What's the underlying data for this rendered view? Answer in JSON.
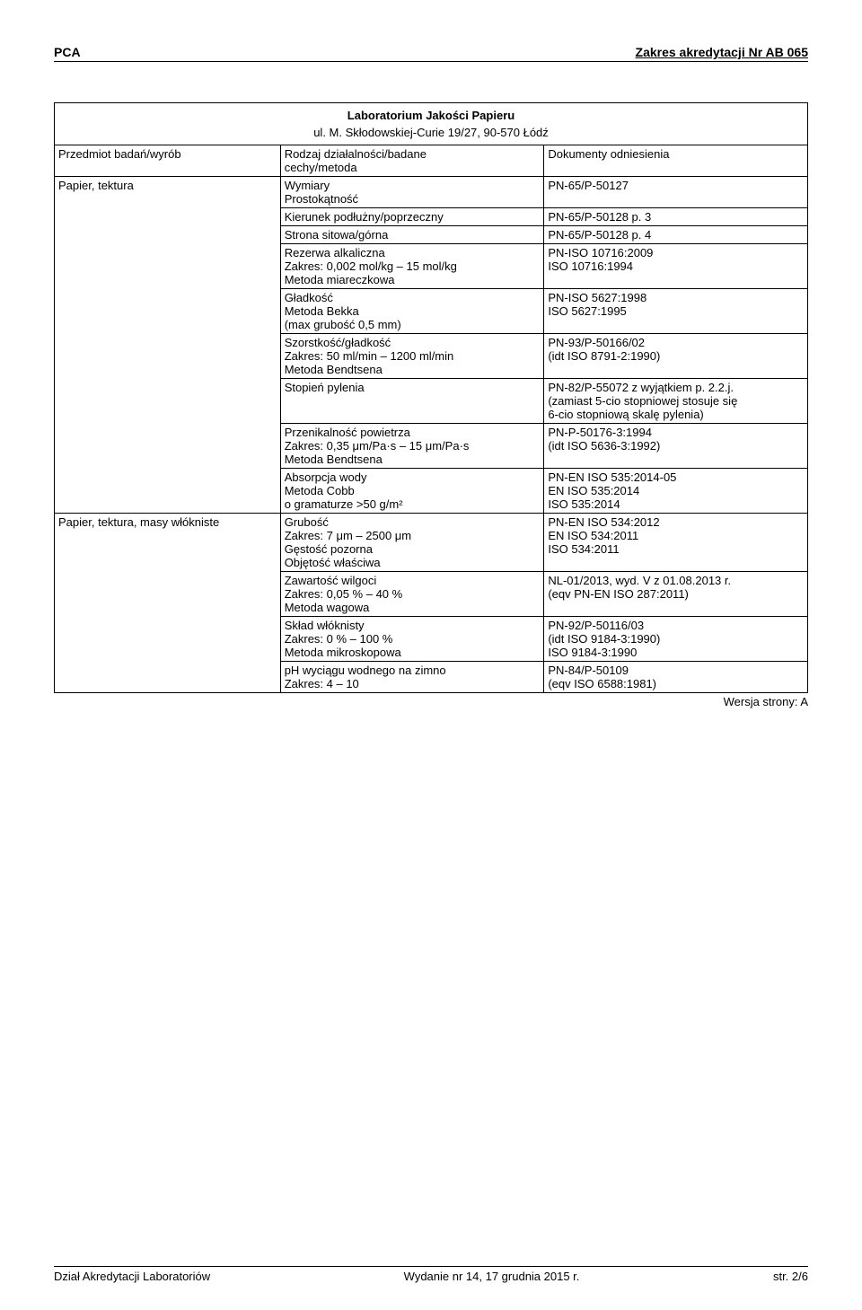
{
  "header": {
    "left": "PCA",
    "right": "Zakres akredytacji Nr AB 065"
  },
  "lab_title": "Laboratorium Jakości Papieru",
  "lab_address": "ul. M. Skłodowskiej-Curie 19/27, 90-570 Łódź",
  "columns": {
    "c1": "Przedmiot badań/wyrób",
    "c2_l1": "Rodzaj działalności/badane",
    "c2_l2": "cechy/metoda",
    "c3": "Dokumenty odniesienia"
  },
  "g1_label": "Papier, tektura",
  "g1": {
    "r1a": "Wymiary",
    "r1b": "Prostokątność",
    "r1d": "PN-65/P-50127",
    "r2a": "Kierunek podłużny/poprzeczny",
    "r2d": "PN-65/P-50128 p. 3",
    "r3a": "Strona sitowa/górna",
    "r3d": "PN-65/P-50128 p. 4",
    "r4a": "Rezerwa alkaliczna",
    "r4b": "Zakres: 0,002 mol/kg – 15 mol/kg",
    "r4c": "Metoda miareczkowa",
    "r4d1": "PN-ISO 10716:2009",
    "r4d2": "ISO 10716:1994",
    "r5a": "Gładkość",
    "r5b": "Metoda Bekka",
    "r5c": "(max grubość 0,5 mm)",
    "r5d1": "PN-ISO 5627:1998",
    "r5d2": "ISO 5627:1995",
    "r6a": "Szorstkość/gładkość",
    "r6b": "Zakres: 50 ml/min – 1200 ml/min",
    "r6c": "Metoda Bendtsena",
    "r6d1": "PN-93/P-50166/02",
    "r6d2": "(idt ISO 8791-2:1990)",
    "r7a": "Stopień pylenia",
    "r7d1": "PN-82/P-55072 z wyjątkiem p. 2.2.j.",
    "r7d2": "(zamiast 5-cio stopniowej stosuje się",
    "r7d3": "6-cio stopniową skalę pylenia)",
    "r8a": "Przenikalność powietrza",
    "r8b": "Zakres: 0,35 μm/Pa·s – 15 μm/Pa·s",
    "r8c": "Metoda Bendtsena",
    "r8d1": "PN-P-50176-3:1994",
    "r8d2": "(idt ISO 5636-3:1992)",
    "r9a": "Absorpcja wody",
    "r9b": "Metoda Cobb",
    "r9c": "o gramaturze >50 g/m²",
    "r9d1": "PN-EN ISO 535:2014-05",
    "r9d2": "EN ISO 535:2014",
    "r9d3": "ISO 535:2014"
  },
  "g2_label": "Papier, tektura, masy włókniste",
  "g2": {
    "r1a": "Grubość",
    "r1b": "Zakres: 7 μm – 2500 μm",
    "r1c": "Gęstość pozorna",
    "r1d": "Objętość właściwa",
    "r1e1": "PN-EN ISO 534:2012",
    "r1e2": "EN ISO 534:2011",
    "r1e3": "ISO 534:2011",
    "r2a": "Zawartość wilgoci",
    "r2b": "Zakres: 0,05 % – 40 %",
    "r2c": "Metoda wagowa",
    "r2d1": "NL-01/2013, wyd. V z 01.08.2013 r.",
    "r2d2": "(eqv PN-EN ISO 287:2011)",
    "r3a": "Skład włóknisty",
    "r3b": "Zakres: 0 % – 100 %",
    "r3c": "Metoda mikroskopowa",
    "r3d1": "PN-92/P-50116/03",
    "r3d2": "(idt ISO 9184-3:1990)",
    "r3d3": "ISO 9184-3:1990",
    "r4a": "pH wyciągu wodnego na zimno",
    "r4b": "Zakres: 4 – 10",
    "r4d1": "PN-84/P-50109",
    "r4d2": "(eqv ISO 6588:1981)"
  },
  "version": "Wersja strony: A",
  "footer": {
    "left": "Dział Akredytacji Laboratoriów",
    "center": "Wydanie nr 14, 17 grudnia 2015 r.",
    "right": "str. 2/6"
  }
}
